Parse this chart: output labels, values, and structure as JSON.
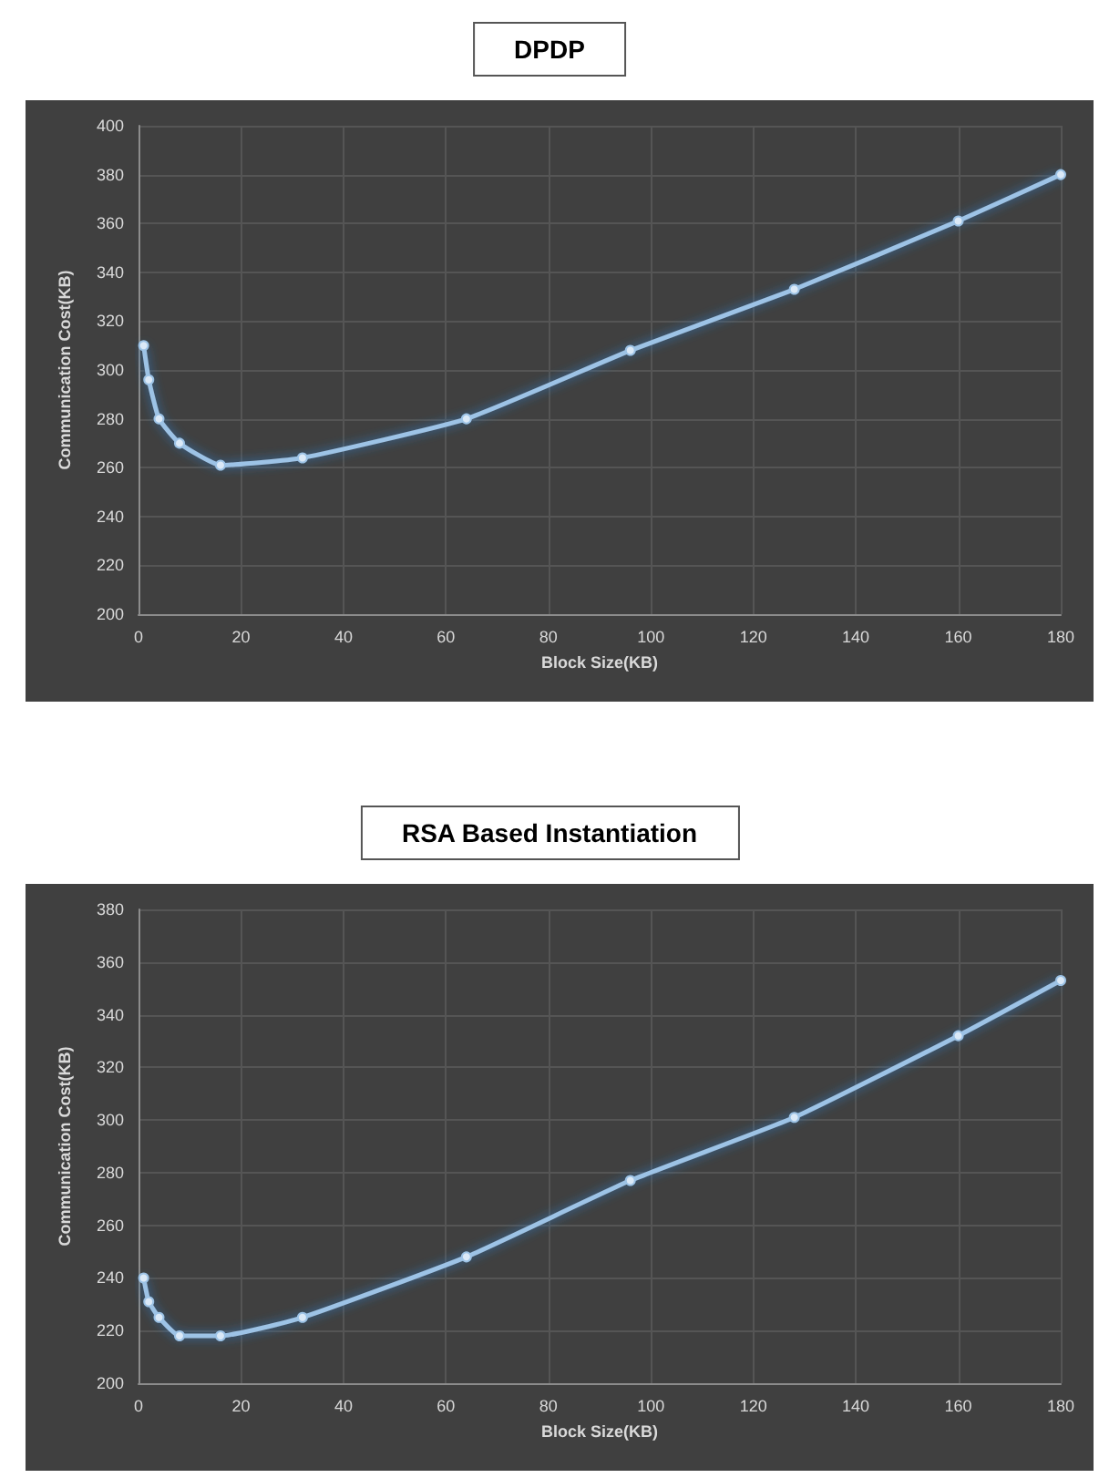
{
  "chart_data": [
    {
      "type": "line",
      "title": "DPDP",
      "xlabel": "Block Size(KB)",
      "ylabel": "Communication Cost(KB)",
      "x": [
        1,
        2,
        4,
        8,
        16,
        32,
        64,
        96,
        128,
        160,
        180
      ],
      "series": [
        {
          "color": "#9dc3e6",
          "values": [
            310,
            296,
            280,
            270,
            261,
            264,
            280,
            308,
            333,
            361,
            380
          ]
        }
      ],
      "xlim": [
        0,
        180
      ],
      "xticks": [
        0,
        20,
        40,
        60,
        80,
        100,
        120,
        140,
        160,
        180
      ],
      "ylim": [
        200,
        400
      ],
      "yticks": [
        200,
        220,
        240,
        260,
        280,
        300,
        320,
        340,
        360,
        380,
        400
      ],
      "grid": true,
      "marker": "circle",
      "line_style": "solid"
    },
    {
      "type": "line",
      "title": "RSA Based Instantiation",
      "xlabel": "Block Size(KB)",
      "ylabel": "Communication Cost(KB)",
      "x": [
        1,
        2,
        4,
        8,
        16,
        32,
        64,
        96,
        128,
        160,
        180
      ],
      "series": [
        {
          "color": "#9dc3e6",
          "values": [
            240,
            231,
            225,
            218,
            218,
            225,
            248,
            277,
            301,
            332,
            353
          ]
        }
      ],
      "xlim": [
        0,
        180
      ],
      "xticks": [
        0,
        20,
        40,
        60,
        80,
        100,
        120,
        140,
        160,
        180
      ],
      "ylim": [
        200,
        380
      ],
      "yticks": [
        200,
        220,
        240,
        260,
        280,
        300,
        320,
        340,
        360,
        380
      ],
      "grid": true,
      "marker": "circle",
      "line_style": "solid"
    }
  ]
}
